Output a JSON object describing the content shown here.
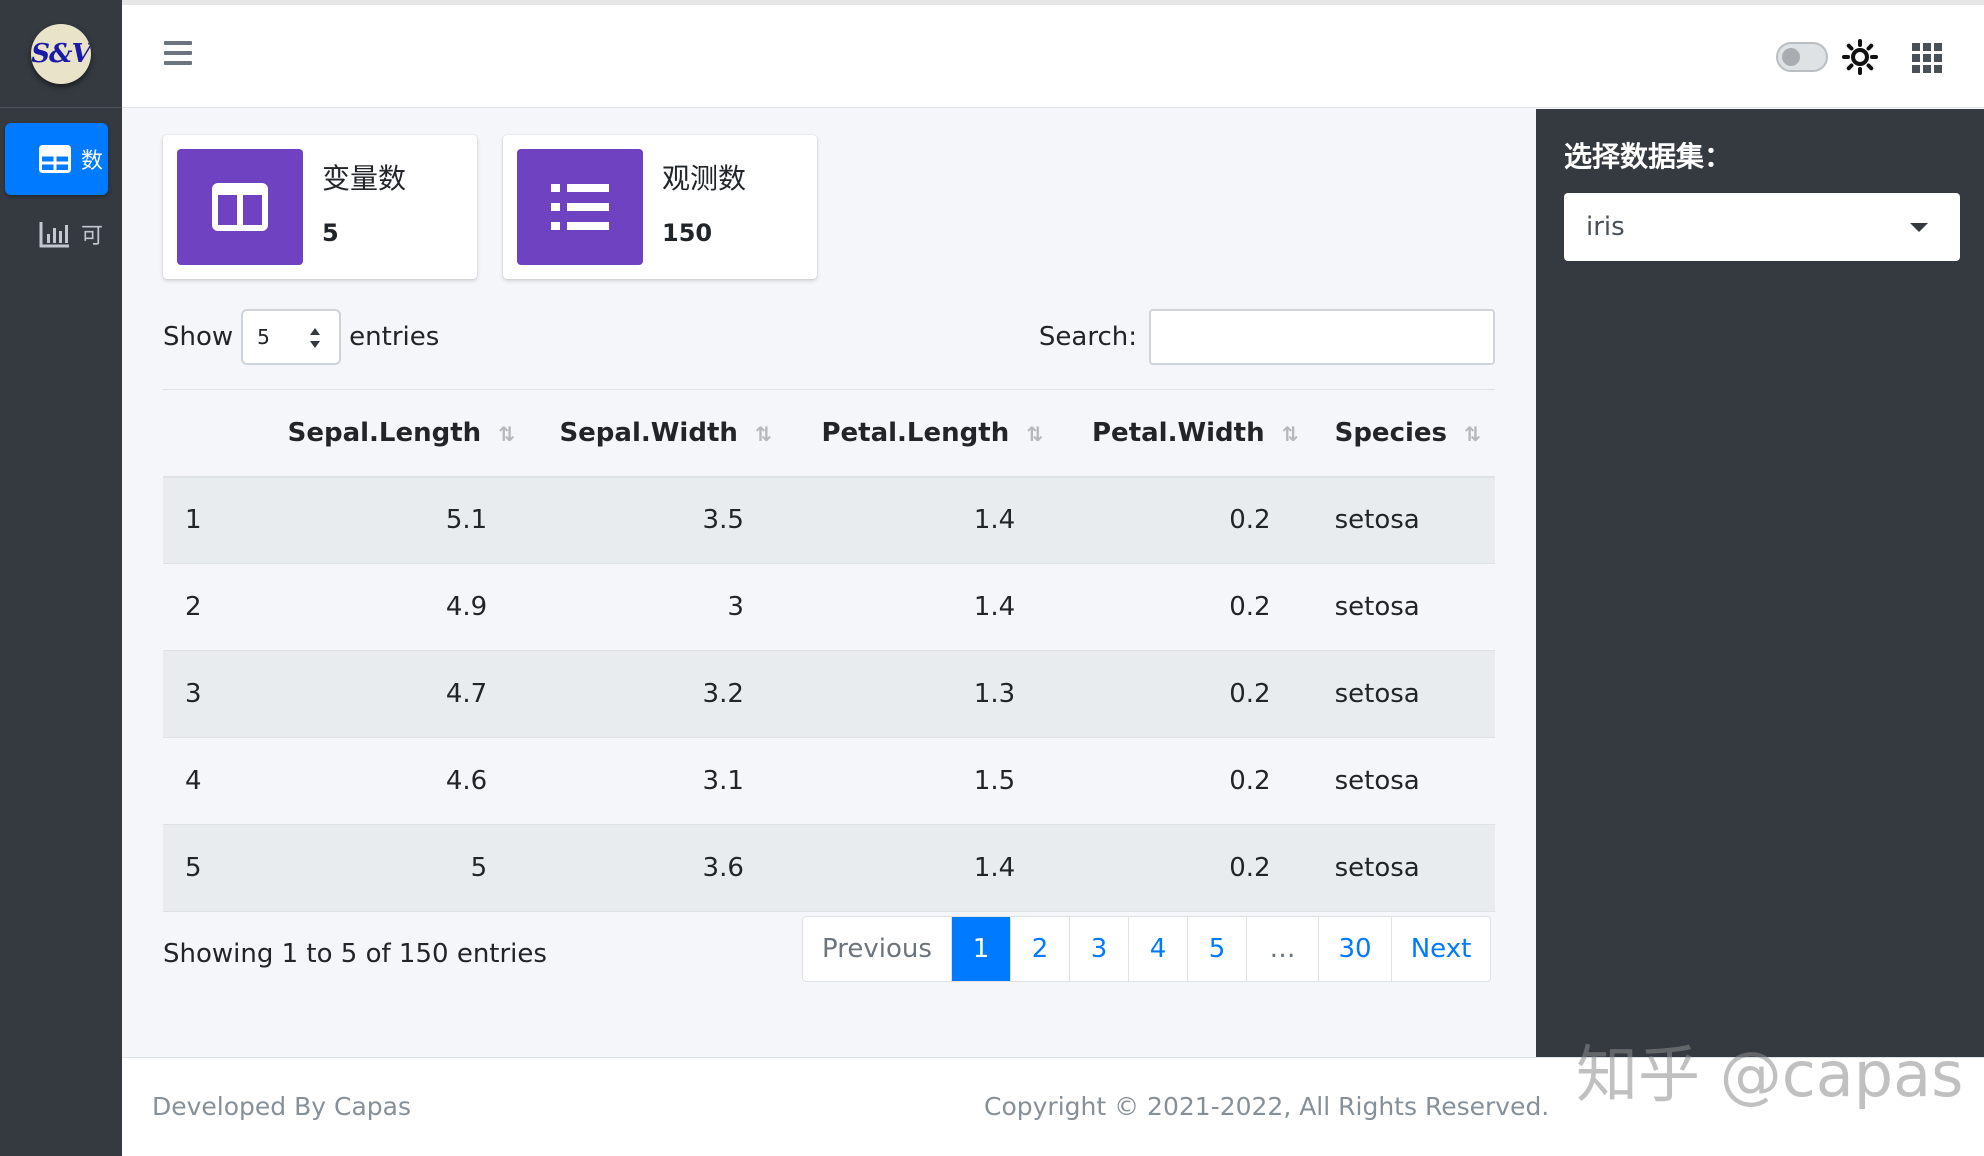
{
  "brand": {
    "logo_text": "S&V"
  },
  "sidebar": {
    "items": [
      {
        "label": "数",
        "icon": "table-icon",
        "active": true
      },
      {
        "label": "可",
        "icon": "bar-chart-icon",
        "active": false
      }
    ]
  },
  "navbar": {
    "icons": [
      "hamburger-icon",
      "theme-toggle",
      "sun-icon",
      "apps-grid-icon"
    ]
  },
  "cards": [
    {
      "title": "变量数",
      "value": "5",
      "icon": "columns-icon"
    },
    {
      "title": "观测数",
      "value": "150",
      "icon": "list-icon"
    }
  ],
  "table_controls": {
    "show_label": "Show",
    "length_value": "5",
    "entries_label": "entries",
    "search_label": "Search:"
  },
  "table": {
    "columns": [
      "",
      "Sepal.Length",
      "Sepal.Width",
      "Petal.Length",
      "Petal.Width",
      "Species"
    ],
    "rows": [
      [
        "1",
        "5.1",
        "3.5",
        "1.4",
        "0.2",
        "setosa"
      ],
      [
        "2",
        "4.9",
        "3",
        "1.4",
        "0.2",
        "setosa"
      ],
      [
        "3",
        "4.7",
        "3.2",
        "1.3",
        "0.2",
        "setosa"
      ],
      [
        "4",
        "4.6",
        "3.1",
        "1.5",
        "0.2",
        "setosa"
      ],
      [
        "5",
        "5",
        "3.6",
        "1.4",
        "0.2",
        "setosa"
      ]
    ],
    "info": "Showing 1 to 5 of 150 entries"
  },
  "pagination": {
    "previous": "Previous",
    "pages": [
      "1",
      "2",
      "3",
      "4",
      "5"
    ],
    "ellipsis": "…",
    "last": "30",
    "next": "Next",
    "current": "1"
  },
  "right_panel": {
    "label": "选择数据集：",
    "selected": "iris"
  },
  "footer": {
    "developed_by": "Developed By Capas",
    "copyright": "Copyright © 2021-2022, All Rights Reserved."
  },
  "watermark": "知乎 @capas",
  "colors": {
    "accent": "#007bff",
    "card_icon_bg": "#6f42c1",
    "sidebar_bg": "#343a40"
  }
}
